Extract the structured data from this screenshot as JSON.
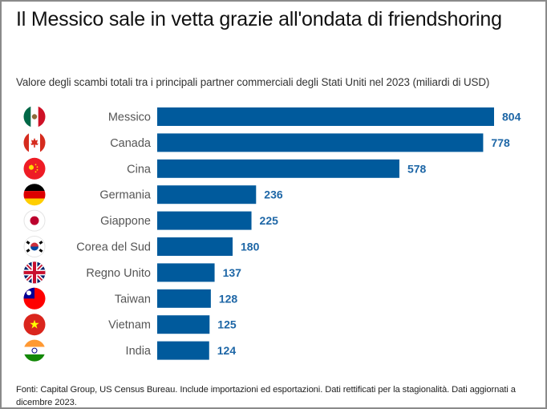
{
  "title": "Il Messico sale in vetta grazie all'ondata di friendshoring",
  "subtitle": "Valore degli scambi totali tra i principali partner commerciali degli Stati Uniti nel 2023 (miliardi di USD)",
  "footer": "Fonti: Capital Group, US Census Bureau. Include importazioni ed esportazioni. Dati rettificati per la stagionalità. Dati aggiornati a dicembre 2023.",
  "colors": {
    "bar": "#005a9c",
    "value_label": "#1d66a6",
    "category_label": "#555555"
  },
  "chart_data": {
    "type": "bar",
    "orientation": "horizontal",
    "title": "Il Messico sale in vetta grazie all'ondata di friendshoring",
    "subtitle": "Valore degli scambi totali tra i principali partner commerciali degli Stati Uniti nel 2023 (miliardi di USD)",
    "xlabel": "",
    "ylabel": "",
    "xlim": [
      0,
      804
    ],
    "grid": false,
    "legend": "none",
    "categories": [
      "Messico",
      "Canada",
      "Cina",
      "Germania",
      "Giappone",
      "Corea del Sud",
      "Regno Unito",
      "Taiwan",
      "Vietnam",
      "India"
    ],
    "values": [
      804,
      778,
      578,
      236,
      225,
      180,
      137,
      128,
      125,
      124
    ],
    "flag_icons": [
      "mexico-flag",
      "canada-flag",
      "china-flag",
      "germany-flag",
      "japan-flag",
      "south-korea-flag",
      "uk-flag",
      "taiwan-flag",
      "vietnam-flag",
      "india-flag"
    ]
  }
}
